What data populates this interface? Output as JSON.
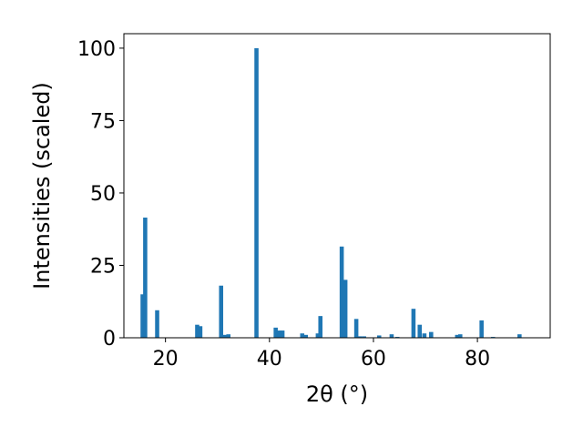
{
  "chart_data": {
    "type": "bar",
    "x_label": "2θ (°)",
    "y_label": "Intensities (scaled)",
    "x": [
      15.6,
      16.1,
      18.4,
      26.1,
      26.7,
      30.7,
      31.4,
      32.1,
      37.5,
      41.2,
      41.9,
      42.5,
      46.3,
      47.0,
      49.3,
      49.8,
      53.9,
      54.6,
      56.7,
      57.4,
      58.2,
      61.1,
      63.5,
      64.6,
      67.7,
      68.9,
      69.8,
      71.1,
      76.1,
      76.7,
      80.8,
      83.0,
      88.1
    ],
    "values": [
      15,
      41.5,
      9.5,
      4.5,
      4,
      18,
      1,
      1.2,
      100,
      3.5,
      2.5,
      2.5,
      1.5,
      1,
      1.5,
      7.5,
      31.5,
      20,
      6.5,
      0.5,
      0.5,
      0.8,
      1.2,
      0.3,
      10,
      4.5,
      1.5,
      2,
      1,
      1.2,
      6,
      0.3,
      1.2
    ],
    "color": "#1f77b4",
    "xlim": [
      12,
      94
    ],
    "ylim": [
      0,
      105
    ],
    "xticks": [
      20,
      40,
      60,
      80
    ],
    "yticks": [
      0,
      25,
      50,
      75,
      100
    ],
    "grid": false
  }
}
